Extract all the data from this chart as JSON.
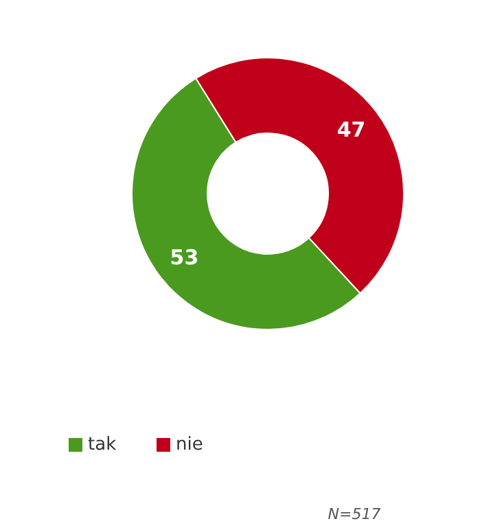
{
  "chart_data": {
    "type": "donut",
    "categories": [
      "nie",
      "tak"
    ],
    "values": [
      47,
      53
    ],
    "colors": [
      "#c0001a",
      "#4a9a1f"
    ],
    "data_labels": true,
    "legend": "bottom left",
    "annotations": [
      "N=517"
    ]
  }
}
